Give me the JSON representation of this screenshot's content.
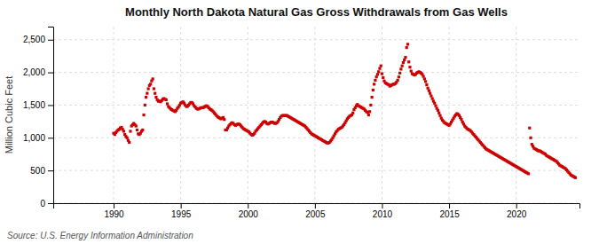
{
  "chart_data": {
    "type": "scatter",
    "title": "Monthly North Dakota Natural Gas Gross Withdrawals from Gas Wells",
    "y_label": "Million Cubic Feet",
    "annotations": [
      "Source: U.S. Energy Information Administration"
    ],
    "color": "#cc0000",
    "marker": "square",
    "grid": true,
    "xlim": [
      1985.5,
      2024.7166666666667
    ],
    "xticks": [
      1990,
      1995,
      2000,
      2005,
      2010,
      2015,
      2020
    ],
    "ylim": [
      0,
      2700
    ],
    "yticks": [
      0,
      500,
      {
        "value": 1000,
        "label": "1,000"
      },
      {
        "value": 1500,
        "label": "1,500"
      },
      {
        "value": 2000,
        "label": "2,000"
      },
      {
        "value": 2500,
        "label": "2,500"
      }
    ],
    "x": [
      1990,
      1990.0833333333333,
      1990.1666666666667,
      1990.25,
      1990.3333333333333,
      1990.4166666666667,
      1990.5,
      1990.5833333333333,
      1990.6666666666667,
      1990.75,
      1990.8333333333333,
      1990.9166666666667,
      1991,
      1991.0833333333333,
      1991.1666666666667,
      1991.25,
      1991.3333333333333,
      1991.4166666666667,
      1991.5,
      1991.5833333333333,
      1991.6666666666667,
      1991.75,
      1991.8333333333333,
      1991.9166666666667,
      1992,
      1992.0833333333333,
      1992.1666666666667,
      1992.25,
      1992.3333333333333,
      1992.4166666666667,
      1992.5,
      1992.5833333333333,
      1992.6666666666667,
      1992.75,
      1992.8333333333333,
      1992.9166666666667,
      1993,
      1993.0833333333333,
      1993.1666666666667,
      1993.25,
      1993.3333333333333,
      1993.4166666666667,
      1993.5,
      1993.5833333333333,
      1993.6666666666667,
      1993.75,
      1993.8333333333333,
      1993.9166666666667,
      1994,
      1994.0833333333333,
      1994.1666666666667,
      1994.25,
      1994.3333333333333,
      1994.4166666666667,
      1994.5,
      1994.5833333333333,
      1994.6666666666667,
      1994.75,
      1994.8333333333333,
      1994.9166666666667,
      1995,
      1995.0833333333333,
      1995.1666666666667,
      1995.25,
      1995.3333333333333,
      1995.4166666666667,
      1995.5,
      1995.5833333333333,
      1995.6666666666667,
      1995.75,
      1995.8333333333333,
      1995.9166666666667,
      1996,
      1996.0833333333333,
      1996.1666666666667,
      1996.25,
      1996.3333333333333,
      1996.4166666666667,
      1996.5,
      1996.5833333333333,
      1996.6666666666667,
      1996.75,
      1996.8333333333333,
      1996.9166666666667,
      1997,
      1997.0833333333333,
      1997.1666666666667,
      1997.25,
      1997.3333333333333,
      1997.4166666666667,
      1997.5,
      1997.5833333333333,
      1997.6666666666667,
      1997.75,
      1997.8333333333333,
      1997.9166666666667,
      1998,
      1998.0833333333333,
      1998.1666666666667,
      1998.25,
      1998.3333333333333,
      1998.4166666666667,
      1998.5,
      1998.5833333333333,
      1998.6666666666667,
      1998.75,
      1998.8333333333333,
      1998.9166666666667,
      1999,
      1999.0833333333333,
      1999.1666666666667,
      1999.25,
      1999.3333333333333,
      1999.4166666666667,
      1999.5,
      1999.5833333333333,
      1999.6666666666667,
      1999.75,
      1999.8333333333333,
      1999.9166666666667,
      2000,
      2000.0833333333333,
      2000.1666666666667,
      2000.25,
      2000.3333333333333,
      2000.4166666666667,
      2000.5,
      2000.5833333333333,
      2000.6666666666667,
      2000.75,
      2000.8333333333333,
      2000.9166666666667,
      2001,
      2001.0833333333333,
      2001.1666666666667,
      2001.25,
      2001.3333333333333,
      2001.4166666666667,
      2001.5,
      2001.5833333333333,
      2001.6666666666667,
      2001.75,
      2001.8333333333333,
      2001.9166666666667,
      2002,
      2002.0833333333333,
      2002.1666666666667,
      2002.25,
      2002.3333333333333,
      2002.4166666666667,
      2002.5,
      2002.5833333333333,
      2002.6666666666667,
      2002.75,
      2002.8333333333333,
      2002.9166666666667,
      2003,
      2003.0833333333333,
      2003.1666666666667,
      2003.25,
      2003.3333333333333,
      2003.4166666666667,
      2003.5,
      2003.5833333333333,
      2003.6666666666667,
      2003.75,
      2003.8333333333333,
      2003.9166666666667,
      2004,
      2004.0833333333333,
      2004.1666666666667,
      2004.25,
      2004.3333333333333,
      2004.4166666666667,
      2004.5,
      2004.5833333333333,
      2004.6666666666667,
      2004.75,
      2004.8333333333333,
      2004.9166666666667,
      2005,
      2005.0833333333333,
      2005.1666666666667,
      2005.25,
      2005.3333333333333,
      2005.4166666666667,
      2005.5,
      2005.5833333333333,
      2005.6666666666667,
      2005.75,
      2005.8333333333333,
      2005.9166666666667,
      2006,
      2006.0833333333333,
      2006.1666666666667,
      2006.25,
      2006.3333333333333,
      2006.4166666666667,
      2006.5,
      2006.5833333333333,
      2006.6666666666667,
      2006.75,
      2006.8333333333333,
      2006.9166666666667,
      2007,
      2007.0833333333333,
      2007.1666666666667,
      2007.25,
      2007.3333333333333,
      2007.4166666666667,
      2007.5,
      2007.5833333333333,
      2007.6666666666667,
      2007.75,
      2007.8333333333333,
      2007.9166666666667,
      2008,
      2008.0833333333333,
      2008.1666666666667,
      2008.25,
      2008.3333333333333,
      2008.4166666666667,
      2008.5,
      2008.5833333333333,
      2008.6666666666667,
      2008.75,
      2008.8333333333333,
      2008.9166666666667,
      2009,
      2009.0833333333333,
      2009.1666666666667,
      2009.25,
      2009.3333333333333,
      2009.4166666666667,
      2009.5,
      2009.5833333333333,
      2009.6666666666667,
      2009.75,
      2009.8333333333333,
      2009.9166666666667,
      2010,
      2010.0833333333333,
      2010.1666666666667,
      2010.25,
      2010.3333333333333,
      2010.4166666666667,
      2010.5,
      2010.5833333333333,
      2010.6666666666667,
      2010.75,
      2010.8333333333333,
      2010.9166666666667,
      2011,
      2011.0833333333333,
      2011.1666666666667,
      2011.25,
      2011.3333333333333,
      2011.4166666666667,
      2011.5,
      2011.5833333333333,
      2011.6666666666667,
      2011.75,
      2011.8333333333333,
      2011.9166666666667,
      2012,
      2012.0833333333333,
      2012.1666666666667,
      2012.25,
      2012.3333333333333,
      2012.4166666666667,
      2012.5,
      2012.5833333333333,
      2012.6666666666667,
      2012.75,
      2012.8333333333333,
      2012.9166666666667,
      2013,
      2013.0833333333333,
      2013.1666666666667,
      2013.25,
      2013.3333333333333,
      2013.4166666666667,
      2013.5,
      2013.5833333333333,
      2013.6666666666667,
      2013.75,
      2013.8333333333333,
      2013.9166666666667,
      2014,
      2014.0833333333333,
      2014.1666666666667,
      2014.25,
      2014.3333333333333,
      2014.4166666666667,
      2014.5,
      2014.5833333333333,
      2014.6666666666667,
      2014.75,
      2014.8333333333333,
      2014.9166666666667,
      2015,
      2015.0833333333333,
      2015.1666666666667,
      2015.25,
      2015.3333333333333,
      2015.4166666666667,
      2015.5,
      2015.5833333333333,
      2015.6666666666667,
      2015.75,
      2015.8333333333333,
      2015.9166666666667,
      2016,
      2016.0833333333333,
      2016.1666666666667,
      2016.25,
      2016.3333333333333,
      2016.4166666666667,
      2016.5,
      2016.5833333333333,
      2016.6666666666667,
      2016.75,
      2016.8333333333333,
      2016.9166666666667,
      2017,
      2017.0833333333333,
      2017.1666666666667,
      2017.25,
      2017.3333333333333,
      2017.4166666666667,
      2017.5,
      2017.5833333333333,
      2017.6666666666667,
      2017.75,
      2017.8333333333333,
      2017.9166666666667,
      2018,
      2018.0833333333333,
      2018.1666666666667,
      2018.25,
      2018.3333333333333,
      2018.4166666666667,
      2018.5,
      2018.5833333333333,
      2018.6666666666667,
      2018.75,
      2018.8333333333333,
      2018.9166666666667,
      2019,
      2019.0833333333333,
      2019.1666666666667,
      2019.25,
      2019.3333333333333,
      2019.4166666666667,
      2019.5,
      2019.5833333333333,
      2019.6666666666667,
      2019.75,
      2019.8333333333333,
      2019.9166666666667,
      2020,
      2020.0833333333333,
      2020.1666666666667,
      2020.25,
      2020.3333333333333,
      2020.4166666666667,
      2020.5,
      2020.5833333333333,
      2020.6666666666667,
      2020.75,
      2020.8333333333333,
      2020.9166666666667,
      2021,
      2021.0833333333333,
      2021.1666666666667,
      2021.25,
      2021.3333333333333,
      2021.4166666666667,
      2021.5,
      2021.5833333333333,
      2021.6666666666667,
      2021.75,
      2021.8333333333333,
      2021.9166666666667,
      2022,
      2022.0833333333333,
      2022.1666666666667,
      2022.25,
      2022.3333333333333,
      2022.4166666666667,
      2022.5,
      2022.5833333333333,
      2022.6666666666667,
      2022.75,
      2022.8333333333333,
      2022.9166666666667,
      2023,
      2023.0833333333333,
      2023.1666666666667,
      2023.25,
      2023.3333333333333,
      2023.4166666666667,
      2023.5,
      2023.5833333333333,
      2023.6666666666667,
      2023.75,
      2023.8333333333333,
      2023.9166666666667,
      2024,
      2024.0833333333333,
      2024.1666666666667,
      2024.25,
      2024.3333333333333,
      2024.4166666666667
    ],
    "values": [
      1070,
      1050,
      1080,
      1100,
      1120,
      1130,
      1150,
      1160,
      1130,
      1100,
      1050,
      1020,
      1000,
      960,
      930,
      1100,
      1180,
      1200,
      1220,
      1200,
      1180,
      1120,
      1060,
      1050,
      1070,
      1100,
      1120,
      1350,
      1500,
      1620,
      1680,
      1750,
      1800,
      1820,
      1870,
      1900,
      1750,
      1680,
      1620,
      1580,
      1560,
      1560,
      1550,
      1570,
      1590,
      1600,
      1590,
      1580,
      1520,
      1480,
      1460,
      1440,
      1430,
      1420,
      1410,
      1400,
      1420,
      1450,
      1470,
      1500,
      1530,
      1540,
      1550,
      1530,
      1500,
      1480,
      1480,
      1500,
      1520,
      1540,
      1540,
      1520,
      1490,
      1470,
      1450,
      1440,
      1440,
      1450,
      1460,
      1460,
      1460,
      1470,
      1480,
      1490,
      1480,
      1460,
      1440,
      1430,
      1420,
      1400,
      1380,
      1360,
      1340,
      1320,
      1310,
      1300,
      1290,
      1300,
      1310,
      1280,
      1120,
      1120,
      1150,
      1180,
      1200,
      1220,
      1230,
      1220,
      1200,
      1190,
      1200,
      1210,
      1210,
      1200,
      1180,
      1160,
      1140,
      1130,
      1120,
      1110,
      1100,
      1090,
      1070,
      1050,
      1040,
      1050,
      1070,
      1100,
      1120,
      1140,
      1160,
      1180,
      1200,
      1220,
      1240,
      1250,
      1240,
      1220,
      1210,
      1220,
      1230,
      1240,
      1240,
      1230,
      1220,
      1220,
      1230,
      1250,
      1280,
      1310,
      1330,
      1340,
      1340,
      1340,
      1340,
      1340,
      1330,
      1320,
      1310,
      1300,
      1290,
      1280,
      1270,
      1260,
      1250,
      1240,
      1230,
      1220,
      1210,
      1200,
      1190,
      1180,
      1160,
      1140,
      1120,
      1100,
      1080,
      1060,
      1050,
      1040,
      1030,
      1020,
      1010,
      1000,
      990,
      980,
      970,
      960,
      950,
      940,
      930,
      920,
      920,
      930,
      950,
      970,
      1000,
      1030,
      1060,
      1090,
      1110,
      1130,
      1140,
      1150,
      1160,
      1180,
      1200,
      1230,
      1260,
      1290,
      1310,
      1330,
      1340,
      1350,
      1380,
      1430,
      1460,
      1490,
      1510,
      1490,
      1480,
      1470,
      1460,
      1450,
      1440,
      1420,
      1400,
      1390,
      1350,
      1400,
      1500,
      1620,
      1730,
      1820,
      1880,
      1930,
      1970,
      2010,
      2060,
      2100,
      1980,
      1920,
      1870,
      1840,
      1830,
      1820,
      1810,
      1790,
      1800,
      1810,
      1820,
      1820,
      1830,
      1850,
      1880,
      1930,
      1990,
      2050,
      2100,
      2150,
      2190,
      2230,
      2380,
      2430,
      2160,
      2080,
      2020,
      1980,
      1970,
      1960,
      1970,
      1990,
      2000,
      2010,
      2000,
      1990,
      1970,
      1940,
      1900,
      1860,
      1810,
      1760,
      1720,
      1680,
      1640,
      1600,
      1560,
      1530,
      1490,
      1450,
      1420,
      1380,
      1340,
      1300,
      1270,
      1250,
      1230,
      1220,
      1210,
      1200,
      1190,
      1210,
      1240,
      1270,
      1300,
      1330,
      1350,
      1370,
      1360,
      1340,
      1310,
      1280,
      1240,
      1210,
      1180,
      1160,
      1140,
      1130,
      1120,
      1110,
      1090,
      1070,
      1050,
      1030,
      1010,
      990,
      970,
      950,
      930,
      910,
      890,
      870,
      850,
      830,
      820,
      810,
      800,
      790,
      780,
      770,
      760,
      750,
      740,
      730,
      720,
      710,
      700,
      690,
      680,
      670,
      660,
      650,
      640,
      630,
      620,
      610,
      600,
      590,
      580,
      570,
      560,
      550,
      540,
      530,
      520,
      510,
      500,
      490,
      480,
      470,
      460,
      450,
      1150,
      1000,
      900,
      870,
      840,
      830,
      820,
      810,
      800,
      800,
      790,
      780,
      770,
      760,
      750,
      730,
      720,
      710,
      700,
      690,
      680,
      670,
      660,
      650,
      640,
      620,
      600,
      580,
      570,
      560,
      550,
      540,
      530,
      510,
      490,
      470,
      450,
      430,
      420,
      410,
      400,
      390
    ]
  }
}
